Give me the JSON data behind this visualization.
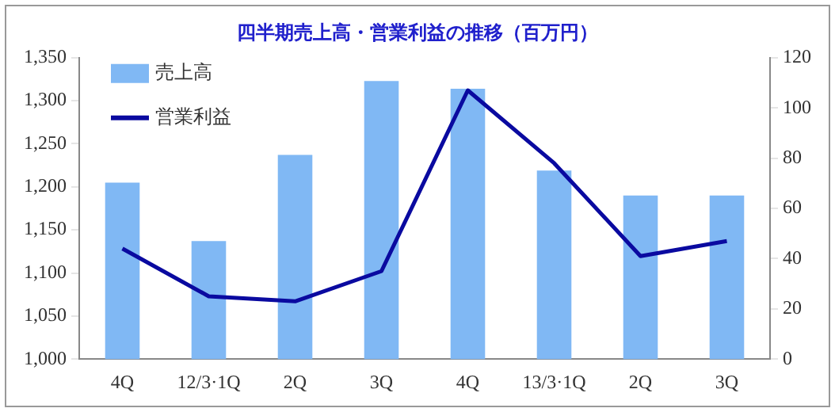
{
  "chart_data": {
    "type": "bar",
    "title": "四半期売上高・営業利益の推移（百万円）",
    "categories": [
      "4Q",
      "12/3·1Q",
      "2Q",
      "3Q",
      "4Q",
      "13/3·1Q",
      "2Q",
      "3Q"
    ],
    "series": [
      {
        "name": "売上高",
        "color": "#80b8f4",
        "values": [
          1205,
          1137,
          1237,
          1323,
          1314,
          1219,
          1190,
          1190
        ]
      },
      {
        "name": "営業利益",
        "type": "line",
        "axis": "y2",
        "color": "#0a0aa0",
        "values": [
          44,
          25,
          23,
          35,
          107,
          78,
          41,
          47
        ]
      }
    ],
    "ylim": [
      1000,
      1350
    ],
    "yticks": [
      {
        "value": 1000,
        "label": "1,000"
      },
      {
        "value": 1050,
        "label": "1,050"
      },
      {
        "value": 1100,
        "label": "1,100"
      },
      {
        "value": 1150,
        "label": "1,150"
      },
      {
        "value": 1200,
        "label": "1,200"
      },
      {
        "value": 1250,
        "label": "1,250"
      },
      {
        "value": 1300,
        "label": "1,300"
      },
      {
        "value": 1350,
        "label": "1,350"
      }
    ],
    "y2lim": [
      0,
      120
    ],
    "y2ticks": [
      0,
      20,
      40,
      60,
      80,
      100,
      120
    ],
    "legend": "top left",
    "grid": false,
    "marker": "none"
  }
}
